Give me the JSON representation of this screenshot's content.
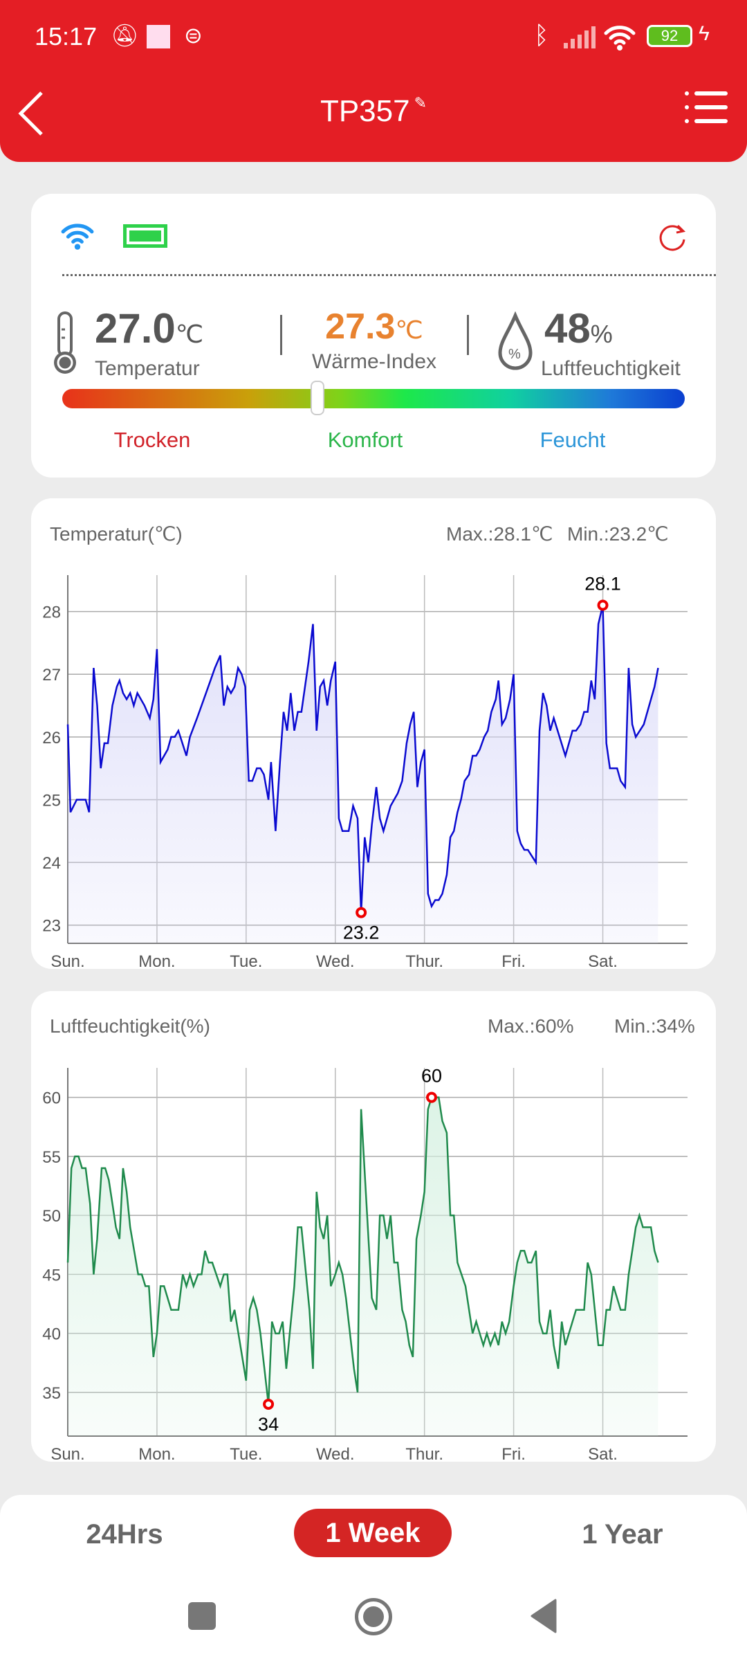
{
  "status": {
    "time": "15:17",
    "battery": "92"
  },
  "header": {
    "title": "TP357"
  },
  "current": {
    "temp_value": "27.0",
    "temp_unit": "℃",
    "temp_label": "Temperatur",
    "heat_value": "27.3",
    "heat_unit": "℃",
    "heat_label": "Wärme-Index",
    "hum_value": "48",
    "hum_unit": "%",
    "hum_label": "Luftfeuchtigkeit",
    "comfort_level": 0.41,
    "scale": [
      "Trocken",
      "Komfort",
      "Feucht"
    ]
  },
  "colors": {
    "accent": "#e41e25",
    "temp_line": "#0a0ad0",
    "hum_line": "#1f8a4c",
    "heat": "#e8822f"
  },
  "tabs": [
    {
      "label": "24Hrs"
    },
    {
      "label": "1 Week",
      "active": true
    },
    {
      "label": "1 Year"
    }
  ],
  "chart_data": [
    {
      "type": "line",
      "title": "Temperatur(℃)",
      "max_label": "Max.:28.1℃",
      "min_label": "Min.:23.2℃",
      "max_point": {
        "x": 6.0,
        "y": 28.1,
        "label": "28.1"
      },
      "min_point": {
        "x": 3.29,
        "y": 23.2,
        "label": "23.2"
      },
      "categories": [
        "Sun.",
        "Mon.",
        "Tue.",
        "Wed.",
        "Thur.",
        "Fri.",
        "Sat."
      ],
      "yticks": [
        23,
        24,
        25,
        26,
        27,
        28
      ],
      "ylim": [
        22.71,
        28.58
      ],
      "xlim": [
        0,
        6.95
      ],
      "points": [
        [
          0,
          26.2
        ],
        [
          0.03,
          24.8
        ],
        [
          0.1,
          25
        ],
        [
          0.2,
          25
        ],
        [
          0.24,
          24.8
        ],
        [
          0.29,
          27.1
        ],
        [
          0.33,
          26.5
        ],
        [
          0.37,
          25.5
        ],
        [
          0.41,
          25.9
        ],
        [
          0.45,
          25.9
        ],
        [
          0.5,
          26.5
        ],
        [
          0.55,
          26.8
        ],
        [
          0.58,
          26.9
        ],
        [
          0.62,
          26.7
        ],
        [
          0.66,
          26.6
        ],
        [
          0.7,
          26.7
        ],
        [
          0.74,
          26.5
        ],
        [
          0.78,
          26.7
        ],
        [
          0.86,
          26.5
        ],
        [
          0.92,
          26.3
        ],
        [
          0.96,
          26.6
        ],
        [
          1,
          27.4
        ],
        [
          1.04,
          25.6
        ],
        [
          1.12,
          25.8
        ],
        [
          1.16,
          26
        ],
        [
          1.2,
          26
        ],
        [
          1.24,
          26.1
        ],
        [
          1.33,
          25.7
        ],
        [
          1.37,
          26
        ],
        [
          1.45,
          26.3
        ],
        [
          1.5,
          26.5
        ],
        [
          1.6,
          26.9
        ],
        [
          1.65,
          27.1
        ],
        [
          1.71,
          27.3
        ],
        [
          1.75,
          26.5
        ],
        [
          1.79,
          26.8
        ],
        [
          1.83,
          26.7
        ],
        [
          1.87,
          26.8
        ],
        [
          1.91,
          27.1
        ],
        [
          1.95,
          27
        ],
        [
          1.99,
          26.8
        ],
        [
          2.03,
          25.3
        ],
        [
          2.07,
          25.3
        ],
        [
          2.12,
          25.5
        ],
        [
          2.16,
          25.5
        ],
        [
          2.2,
          25.4
        ],
        [
          2.25,
          25
        ],
        [
          2.28,
          25.6
        ],
        [
          2.33,
          24.5
        ],
        [
          2.38,
          25.6
        ],
        [
          2.42,
          26.4
        ],
        [
          2.46,
          26.1
        ],
        [
          2.5,
          26.7
        ],
        [
          2.54,
          26.1
        ],
        [
          2.58,
          26.4
        ],
        [
          2.62,
          26.4
        ],
        [
          2.7,
          27.2
        ],
        [
          2.75,
          27.8
        ],
        [
          2.79,
          26.1
        ],
        [
          2.83,
          26.8
        ],
        [
          2.87,
          26.9
        ],
        [
          2.91,
          26.5
        ],
        [
          2.95,
          26.9
        ],
        [
          3,
          27.2
        ],
        [
          3.04,
          24.7
        ],
        [
          3.08,
          24.5
        ],
        [
          3.15,
          24.5
        ],
        [
          3.2,
          24.9
        ],
        [
          3.25,
          24.7
        ],
        [
          3.29,
          23.2
        ],
        [
          3.33,
          24.4
        ],
        [
          3.37,
          24
        ],
        [
          3.41,
          24.6
        ],
        [
          3.46,
          25.2
        ],
        [
          3.5,
          24.7
        ],
        [
          3.54,
          24.5
        ],
        [
          3.62,
          24.9
        ],
        [
          3.7,
          25.1
        ],
        [
          3.75,
          25.3
        ],
        [
          3.8,
          25.9
        ],
        [
          3.84,
          26.2
        ],
        [
          3.88,
          26.4
        ],
        [
          3.92,
          25.2
        ],
        [
          3.96,
          25.6
        ],
        [
          4,
          25.8
        ],
        [
          4.04,
          23.5
        ],
        [
          4.08,
          23.3
        ],
        [
          4.12,
          23.4
        ],
        [
          4.16,
          23.4
        ],
        [
          4.2,
          23.5
        ],
        [
          4.25,
          23.8
        ],
        [
          4.29,
          24.4
        ],
        [
          4.33,
          24.5
        ],
        [
          4.37,
          24.8
        ],
        [
          4.41,
          25
        ],
        [
          4.45,
          25.3
        ],
        [
          4.5,
          25.4
        ],
        [
          4.54,
          25.7
        ],
        [
          4.58,
          25.7
        ],
        [
          4.62,
          25.8
        ],
        [
          4.67,
          26
        ],
        [
          4.71,
          26.1
        ],
        [
          4.75,
          26.4
        ],
        [
          4.8,
          26.6
        ],
        [
          4.83,
          26.9
        ],
        [
          4.87,
          26.2
        ],
        [
          4.91,
          26.3
        ],
        [
          4.96,
          26.6
        ],
        [
          5,
          27
        ],
        [
          5.04,
          24.5
        ],
        [
          5.08,
          24.3
        ],
        [
          5.12,
          24.2
        ],
        [
          5.16,
          24.2
        ],
        [
          5.25,
          24
        ],
        [
          5.29,
          26.1
        ],
        [
          5.33,
          26.7
        ],
        [
          5.37,
          26.5
        ],
        [
          5.41,
          26.1
        ],
        [
          5.45,
          26.3
        ],
        [
          5.58,
          25.7
        ],
        [
          5.66,
          26.1
        ],
        [
          5.7,
          26.1
        ],
        [
          5.75,
          26.2
        ],
        [
          5.79,
          26.4
        ],
        [
          5.83,
          26.4
        ],
        [
          5.87,
          26.9
        ],
        [
          5.91,
          26.6
        ],
        [
          5.95,
          27.8
        ],
        [
          6,
          28.1
        ],
        [
          6.04,
          25.9
        ],
        [
          6.08,
          25.5
        ],
        [
          6.16,
          25.5
        ],
        [
          6.2,
          25.3
        ],
        [
          6.25,
          25.2
        ],
        [
          6.29,
          27.1
        ],
        [
          6.33,
          26.2
        ],
        [
          6.37,
          26
        ],
        [
          6.46,
          26.2
        ],
        [
          6.58,
          26.8
        ],
        [
          6.62,
          27.1
        ]
      ]
    },
    {
      "type": "line",
      "title": "Luftfeuchtigkeit(%)",
      "max_label": "Max.:60%",
      "min_label": "Min.:34%",
      "max_point": {
        "x": 4.08,
        "y": 60,
        "label": "60"
      },
      "min_point": {
        "x": 2.25,
        "y": 34,
        "label": "34"
      },
      "categories": [
        "Sun.",
        "Mon.",
        "Tue.",
        "Wed.",
        "Thur.",
        "Fri.",
        "Sat."
      ],
      "yticks": [
        35,
        40,
        45,
        50,
        55,
        60
      ],
      "ylim": [
        31.3,
        62.5
      ],
      "xlim": [
        0,
        6.95
      ],
      "points": [
        [
          0,
          46
        ],
        [
          0.04,
          54
        ],
        [
          0.08,
          55
        ],
        [
          0.12,
          55
        ],
        [
          0.16,
          54
        ],
        [
          0.2,
          54
        ],
        [
          0.25,
          51
        ],
        [
          0.29,
          45
        ],
        [
          0.33,
          48
        ],
        [
          0.38,
          54
        ],
        [
          0.42,
          54
        ],
        [
          0.46,
          53
        ],
        [
          0.5,
          51
        ],
        [
          0.54,
          49
        ],
        [
          0.58,
          48
        ],
        [
          0.62,
          54
        ],
        [
          0.66,
          52
        ],
        [
          0.7,
          49
        ],
        [
          0.79,
          45
        ],
        [
          0.83,
          45
        ],
        [
          0.87,
          44
        ],
        [
          0.91,
          44
        ],
        [
          0.96,
          38
        ],
        [
          1,
          40
        ],
        [
          1.04,
          44
        ],
        [
          1.08,
          44
        ],
        [
          1.16,
          42
        ],
        [
          1.24,
          42
        ],
        [
          1.29,
          45
        ],
        [
          1.33,
          44
        ],
        [
          1.37,
          45
        ],
        [
          1.41,
          44
        ],
        [
          1.46,
          45
        ],
        [
          1.5,
          45
        ],
        [
          1.54,
          47
        ],
        [
          1.58,
          46
        ],
        [
          1.62,
          46
        ],
        [
          1.71,
          44
        ],
        [
          1.75,
          45
        ],
        [
          1.79,
          45
        ],
        [
          1.83,
          41
        ],
        [
          1.87,
          42
        ],
        [
          2,
          36
        ],
        [
          2.04,
          42
        ],
        [
          2.08,
          43
        ],
        [
          2.12,
          42
        ],
        [
          2.16,
          40
        ],
        [
          2.25,
          34
        ],
        [
          2.29,
          41
        ],
        [
          2.33,
          40
        ],
        [
          2.37,
          40
        ],
        [
          2.41,
          41
        ],
        [
          2.45,
          37
        ],
        [
          2.54,
          44
        ],
        [
          2.58,
          49
        ],
        [
          2.62,
          49
        ],
        [
          2.71,
          42
        ],
        [
          2.75,
          37
        ],
        [
          2.79,
          52
        ],
        [
          2.83,
          49
        ],
        [
          2.87,
          48
        ],
        [
          2.91,
          50
        ],
        [
          2.95,
          44
        ],
        [
          3,
          45
        ],
        [
          3.04,
          46
        ],
        [
          3.08,
          45
        ],
        [
          3.12,
          43
        ],
        [
          3.21,
          37
        ],
        [
          3.25,
          35
        ],
        [
          3.29,
          59
        ],
        [
          3.41,
          43
        ],
        [
          3.46,
          42
        ],
        [
          3.5,
          50
        ],
        [
          3.54,
          50
        ],
        [
          3.58,
          48
        ],
        [
          3.62,
          50
        ],
        [
          3.66,
          46
        ],
        [
          3.7,
          46
        ],
        [
          3.75,
          42
        ],
        [
          3.79,
          41
        ],
        [
          3.83,
          39
        ],
        [
          3.87,
          38
        ],
        [
          3.91,
          48
        ],
        [
          3.96,
          50
        ],
        [
          4,
          52
        ],
        [
          4.04,
          59
        ],
        [
          4.08,
          60
        ],
        [
          4.16,
          60
        ],
        [
          4.2,
          58
        ],
        [
          4.25,
          57
        ],
        [
          4.29,
          50
        ],
        [
          4.33,
          50
        ],
        [
          4.37,
          46
        ],
        [
          4.46,
          44
        ],
        [
          4.54,
          40
        ],
        [
          4.58,
          41
        ],
        [
          4.62,
          40
        ],
        [
          4.66,
          39
        ],
        [
          4.7,
          40
        ],
        [
          4.74,
          39
        ],
        [
          4.79,
          40
        ],
        [
          4.83,
          39
        ],
        [
          4.87,
          41
        ],
        [
          4.91,
          40
        ],
        [
          4.95,
          41
        ],
        [
          5,
          44
        ],
        [
          5.04,
          46
        ],
        [
          5.08,
          47
        ],
        [
          5.12,
          47
        ],
        [
          5.16,
          46
        ],
        [
          5.2,
          46
        ],
        [
          5.25,
          47
        ],
        [
          5.29,
          41
        ],
        [
          5.33,
          40
        ],
        [
          5.37,
          40
        ],
        [
          5.41,
          42
        ],
        [
          5.45,
          39
        ],
        [
          5.5,
          37
        ],
        [
          5.54,
          41
        ],
        [
          5.58,
          39
        ],
        [
          5.66,
          41
        ],
        [
          5.7,
          42
        ],
        [
          5.79,
          42
        ],
        [
          5.83,
          46
        ],
        [
          5.87,
          45
        ],
        [
          5.95,
          39
        ],
        [
          6,
          39
        ],
        [
          6.04,
          42
        ],
        [
          6.08,
          42
        ],
        [
          6.12,
          44
        ],
        [
          6.2,
          42
        ],
        [
          6.25,
          42
        ],
        [
          6.29,
          45
        ],
        [
          6.33,
          47
        ],
        [
          6.37,
          49
        ],
        [
          6.41,
          50
        ],
        [
          6.45,
          49
        ],
        [
          6.54,
          49
        ],
        [
          6.58,
          47
        ],
        [
          6.62,
          46
        ]
      ]
    }
  ]
}
